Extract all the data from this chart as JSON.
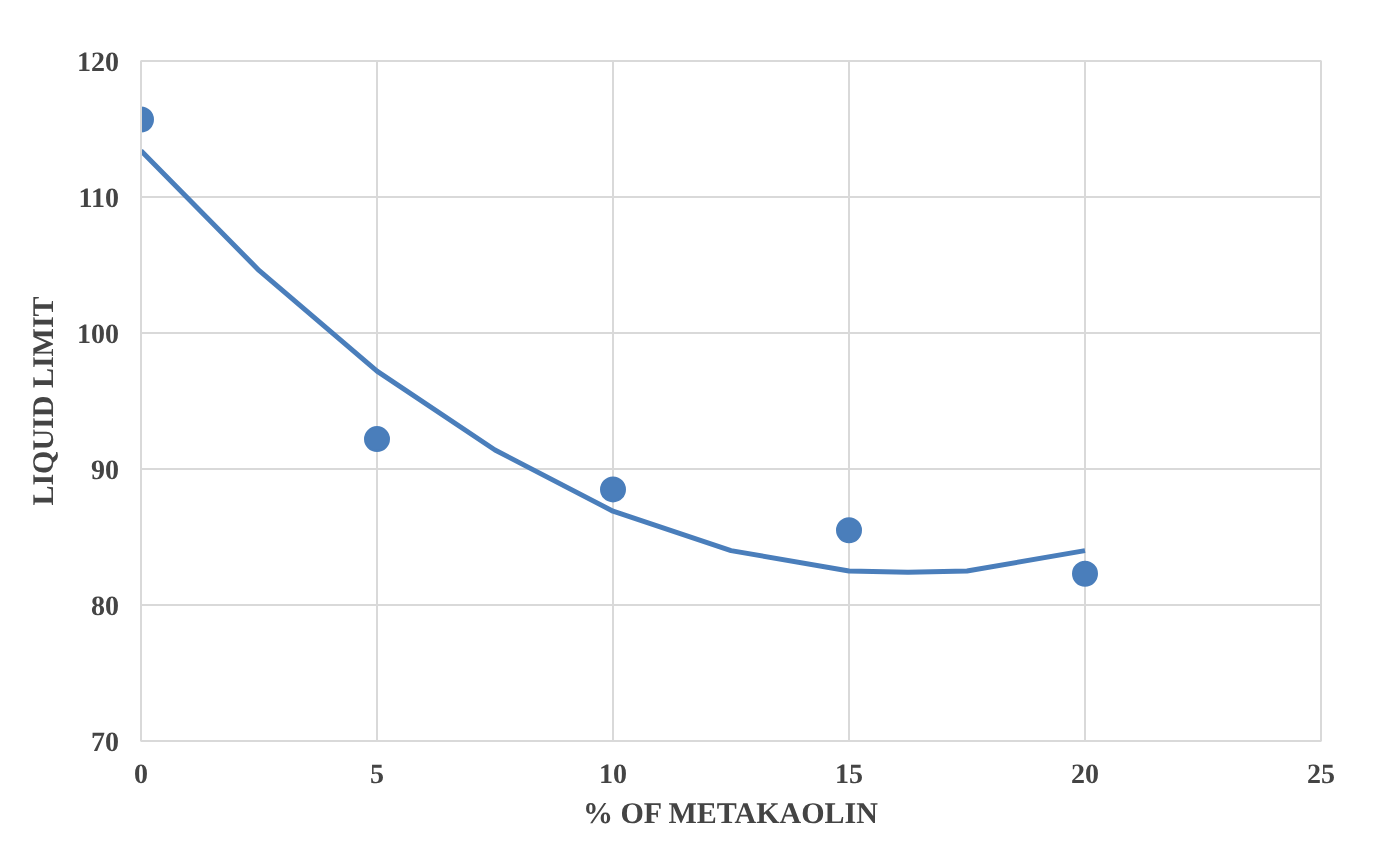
{
  "chart_data": {
    "type": "scatter",
    "xlabel": "% OF METAKAOLIN",
    "ylabel": "LIQUID LIMIT",
    "xlim": [
      0,
      25
    ],
    "xticks": [
      0,
      5,
      10,
      15,
      20,
      25
    ],
    "ylim": [
      70,
      120
    ],
    "yticks": [
      70,
      80,
      90,
      100,
      110,
      120
    ],
    "grid": true,
    "series": [
      {
        "marker": "circle",
        "color": "#4a7ebb",
        "x": [
          0,
          5,
          10,
          15,
          20
        ],
        "values": [
          115.7,
          92.2,
          88.5,
          85.5,
          82.3
        ]
      },
      {
        "type": "line",
        "color": "#4a7ebb",
        "x": [
          0,
          2.5,
          5,
          7.5,
          10,
          12.5,
          15,
          16.25,
          17.5,
          20
        ],
        "values": [
          113.4,
          104.6,
          97.2,
          91.4,
          86.9,
          84.0,
          82.5,
          82.4,
          82.5,
          84.0
        ]
      }
    ]
  }
}
